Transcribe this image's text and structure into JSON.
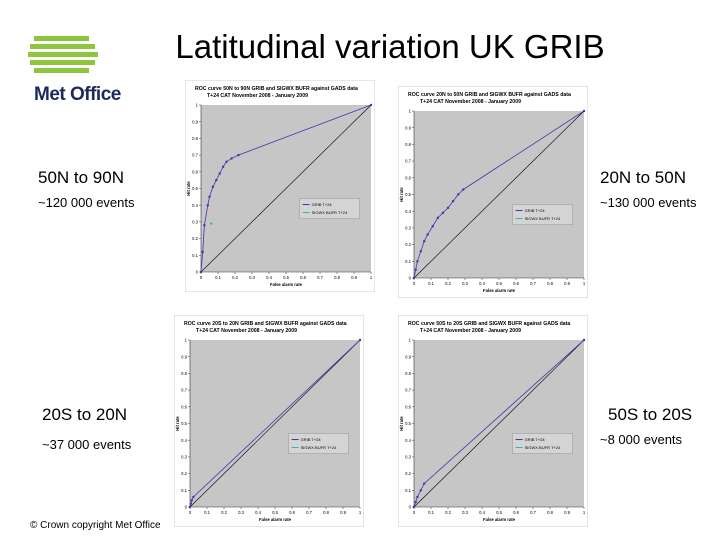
{
  "slide": {
    "title": "Latitudinal variation UK GRIB",
    "logo_text": "Met Office",
    "copyright": "© Crown copyright   Met Office"
  },
  "regions": [
    {
      "label": "50N to 90N",
      "events": "~120 000 events"
    },
    {
      "label": "20N to 50N",
      "events": "~130 000 events"
    },
    {
      "label": "20S to 20N",
      "events": "~37 000 events"
    },
    {
      "label": "50S to 20S",
      "events": "~8 000 events"
    }
  ],
  "colors": {
    "plot_bg": "#c6c6c6",
    "curve": "#3a3aa8",
    "diagonal": "#000000",
    "logo_green": "#8cc63f",
    "logo_navy": "#1b2a5a"
  },
  "chart_data": [
    {
      "type": "line",
      "title": "ROC curve 50N to 90N GRIB and SIGWX BUFR against GADS data",
      "subtitle": "T+24 CAT November 2008 - January 2009",
      "xlabel": "False alarm rate",
      "ylabel": "Hit rate",
      "xlim": [
        0,
        1
      ],
      "ylim": [
        0,
        1
      ],
      "x_ticks": [
        "0",
        "0.1",
        "0.2",
        "0.3",
        "0.4",
        "0.5",
        "0.6",
        "0.7",
        "0.8",
        "0.9",
        "1"
      ],
      "y_ticks": [
        "0",
        "0.1",
        "0.2",
        "0.3",
        "0.4",
        "0.5",
        "0.6",
        "0.7",
        "0.8",
        "0.9",
        "1"
      ],
      "legend_position": "center",
      "series": [
        {
          "name": "GRIB T+24",
          "kind": "curve",
          "x": [
            0,
            0.01,
            0.02,
            0.04,
            0.05,
            0.07,
            0.09,
            0.11,
            0.13,
            0.15,
            0.18,
            0.22,
            1
          ],
          "y": [
            0,
            0.12,
            0.28,
            0.4,
            0.45,
            0.51,
            0.55,
            0.59,
            0.63,
            0.66,
            0.68,
            0.7,
            1
          ]
        },
        {
          "name": "SIGWX BUFR T+24",
          "kind": "points",
          "x": [
            0.06
          ],
          "y": [
            0.29
          ]
        }
      ]
    },
    {
      "type": "line",
      "title": "ROC curve 20N to 50N GRIB and SIGWX BUFR against GADS data",
      "subtitle": "T+24 CAT November 2008 - January 2009",
      "xlabel": "False alarm rate",
      "ylabel": "Hit rate",
      "xlim": [
        0,
        1
      ],
      "ylim": [
        0,
        1
      ],
      "x_ticks": [
        "0",
        "0.1",
        "0.2",
        "0.3",
        "0.4",
        "0.5",
        "0.6",
        "0.7",
        "0.8",
        "0.9",
        "1"
      ],
      "y_ticks": [
        "0",
        "0.1",
        "0.2",
        "0.3",
        "0.4",
        "0.5",
        "0.6",
        "0.7",
        "0.8",
        "0.9",
        "1"
      ],
      "legend_position": "center",
      "series": [
        {
          "name": "GRIB T+24",
          "kind": "curve",
          "x": [
            0,
            0.01,
            0.02,
            0.04,
            0.06,
            0.08,
            0.11,
            0.14,
            0.17,
            0.2,
            0.23,
            0.26,
            0.29,
            1
          ],
          "y": [
            0,
            0.05,
            0.1,
            0.16,
            0.22,
            0.26,
            0.31,
            0.36,
            0.39,
            0.42,
            0.46,
            0.5,
            0.53,
            1
          ]
        },
        {
          "name": "SIGWX BUFR T+24",
          "kind": "points",
          "x": [],
          "y": []
        }
      ]
    },
    {
      "type": "line",
      "title": "ROC curve 20S to 20N GRIB and SIGWX BUFR against GADS data",
      "subtitle": "T+24 CAT November 2008 - January 2009",
      "xlabel": "False alarm rate",
      "ylabel": "Hit rate",
      "xlim": [
        0,
        1
      ],
      "ylim": [
        0,
        1
      ],
      "x_ticks": [
        "0",
        "0.1",
        "0.2",
        "0.3",
        "0.4",
        "0.5",
        "0.6",
        "0.7",
        "0.8",
        "0.9",
        "1"
      ],
      "y_ticks": [
        "0",
        "0.1",
        "0.2",
        "0.3",
        "0.4",
        "0.5",
        "0.6",
        "0.7",
        "0.8",
        "0.9",
        "1"
      ],
      "legend_position": "center",
      "series": [
        {
          "name": "GRIB T+24",
          "kind": "curve",
          "x": [
            0,
            0.005,
            0.01,
            0.02,
            1
          ],
          "y": [
            0,
            0.02,
            0.04,
            0.06,
            1
          ]
        },
        {
          "name": "SIGWX BUFR T+24",
          "kind": "points",
          "x": [],
          "y": []
        }
      ]
    },
    {
      "type": "line",
      "title": "ROC curve 50S to 20S GRIB and SIGWX BUFR against GADS data",
      "subtitle": "T+24 CAT November 2008 - January 2009",
      "xlabel": "False alarm rate",
      "ylabel": "Hit rate",
      "xlim": [
        0,
        1
      ],
      "ylim": [
        0,
        1
      ],
      "x_ticks": [
        "0",
        "0.1",
        "0.2",
        "0.3",
        "0.4",
        "0.5",
        "0.6",
        "0.7",
        "0.8",
        "0.9",
        "1"
      ],
      "y_ticks": [
        "0",
        "0.1",
        "0.2",
        "0.3",
        "0.4",
        "0.5",
        "0.6",
        "0.7",
        "0.8",
        "0.9",
        "1"
      ],
      "legend_position": "center",
      "series": [
        {
          "name": "GRIB T+24",
          "kind": "curve",
          "x": [
            0,
            0.01,
            0.02,
            0.04,
            0.06,
            1
          ],
          "y": [
            0,
            0.03,
            0.06,
            0.1,
            0.14,
            1
          ]
        },
        {
          "name": "SIGWX BUFR T+24",
          "kind": "points",
          "x": [],
          "y": []
        }
      ]
    }
  ]
}
